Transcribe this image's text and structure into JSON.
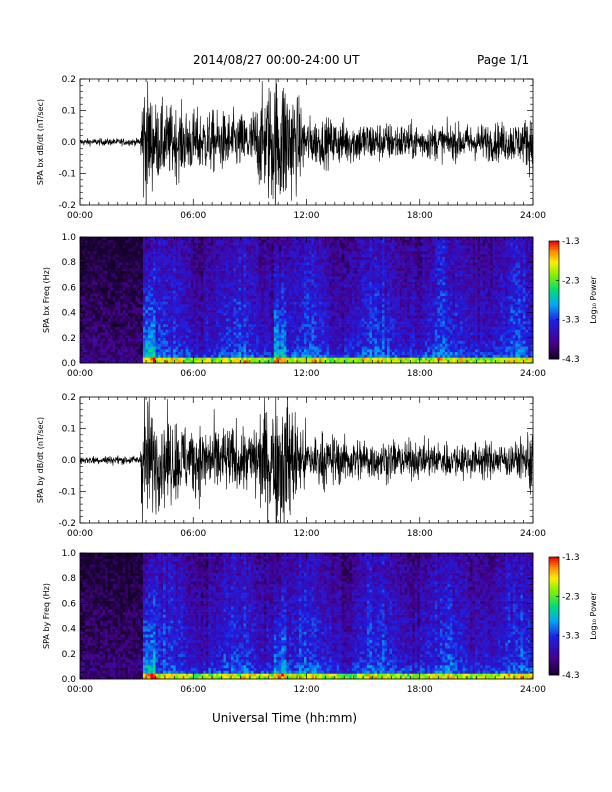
{
  "header": {
    "title": "2014/08/27  00:00-24:00 UT",
    "page": "Page 1/1"
  },
  "x_axis_title": "Universal Time (hh:mm)",
  "colorbar_label": "Log₁₀ Power",
  "chart_data": [
    {
      "type": "line",
      "ylabel": "SPA bx dB/dt (nT/sec)",
      "xlim": [
        "00:00",
        "24:00"
      ],
      "x_ticks": [
        "00:00",
        "06:00",
        "12:00",
        "18:00",
        "24:00"
      ],
      "ylim": [
        -0.2,
        0.2
      ],
      "y_ticks": [
        "0.2",
        "0.1",
        "0.0",
        "-0.1",
        "-0.2"
      ],
      "series": [
        {
          "color": "#000000",
          "envelope_x_hours": [
            0,
            3.2,
            3.3,
            4,
            6,
            9,
            10.3,
            10.9,
            12,
            15,
            18,
            21,
            23.5,
            24
          ],
          "envelope_y_amplitude": [
            0.01,
            0.01,
            0.2,
            0.11,
            0.09,
            0.08,
            0.2,
            0.2,
            0.07,
            0.06,
            0.05,
            0.05,
            0.06,
            0.1
          ]
        }
      ]
    },
    {
      "type": "heatmap",
      "ylabel": "SPA bx Freq (Hz)",
      "xlim": [
        "00:00",
        "24:00"
      ],
      "x_ticks": [
        "00:00",
        "06:00",
        "12:00",
        "18:00",
        "24:00"
      ],
      "ylim": [
        0.0,
        1.0
      ],
      "y_ticks": [
        "1.0",
        "0.8",
        "0.6",
        "0.4",
        "0.2",
        "0.0"
      ],
      "colorbar": {
        "label": "Log₁₀ Power",
        "range": [
          -4.3,
          -1.3
        ],
        "ticks": [
          "-1.3",
          "-2.3",
          "-3.3",
          "-4.3"
        ]
      },
      "active_intervals_hours": [
        [
          3.3,
          4.0
        ],
        [
          10.3,
          10.9
        ]
      ]
    },
    {
      "type": "line",
      "ylabel": "SPA by dB/dt (nT/sec)",
      "xlim": [
        "00:00",
        "24:00"
      ],
      "x_ticks": [
        "00:00",
        "06:00",
        "12:00",
        "18:00",
        "24:00"
      ],
      "ylim": [
        -0.2,
        0.2
      ],
      "y_ticks": [
        "0.2",
        "0.1",
        "0.0",
        "-0.1",
        "-0.2"
      ],
      "series": [
        {
          "color": "#000000",
          "envelope_x_hours": [
            0,
            3.2,
            3.3,
            4,
            6,
            9,
            10.3,
            10.9,
            12,
            15,
            18,
            21,
            23.5,
            24
          ],
          "envelope_y_amplitude": [
            0.012,
            0.012,
            0.2,
            0.13,
            0.1,
            0.09,
            0.2,
            0.2,
            0.08,
            0.06,
            0.05,
            0.05,
            0.05,
            0.12
          ]
        }
      ]
    },
    {
      "type": "heatmap",
      "ylabel": "SPA by Freq (Hz)",
      "xlim": [
        "00:00",
        "24:00"
      ],
      "x_ticks": [
        "00:00",
        "06:00",
        "12:00",
        "18:00",
        "24:00"
      ],
      "ylim": [
        0.0,
        1.0
      ],
      "y_ticks": [
        "1.0",
        "0.8",
        "0.6",
        "0.4",
        "0.2",
        "0.0"
      ],
      "colorbar": {
        "label": "Log₁₀ Power",
        "range": [
          -4.3,
          -1.3
        ],
        "ticks": [
          "-1.3",
          "-2.3",
          "-3.3",
          "-4.3"
        ]
      },
      "active_intervals_hours": [
        [
          3.3,
          4.0
        ],
        [
          10.3,
          10.9
        ]
      ]
    }
  ]
}
